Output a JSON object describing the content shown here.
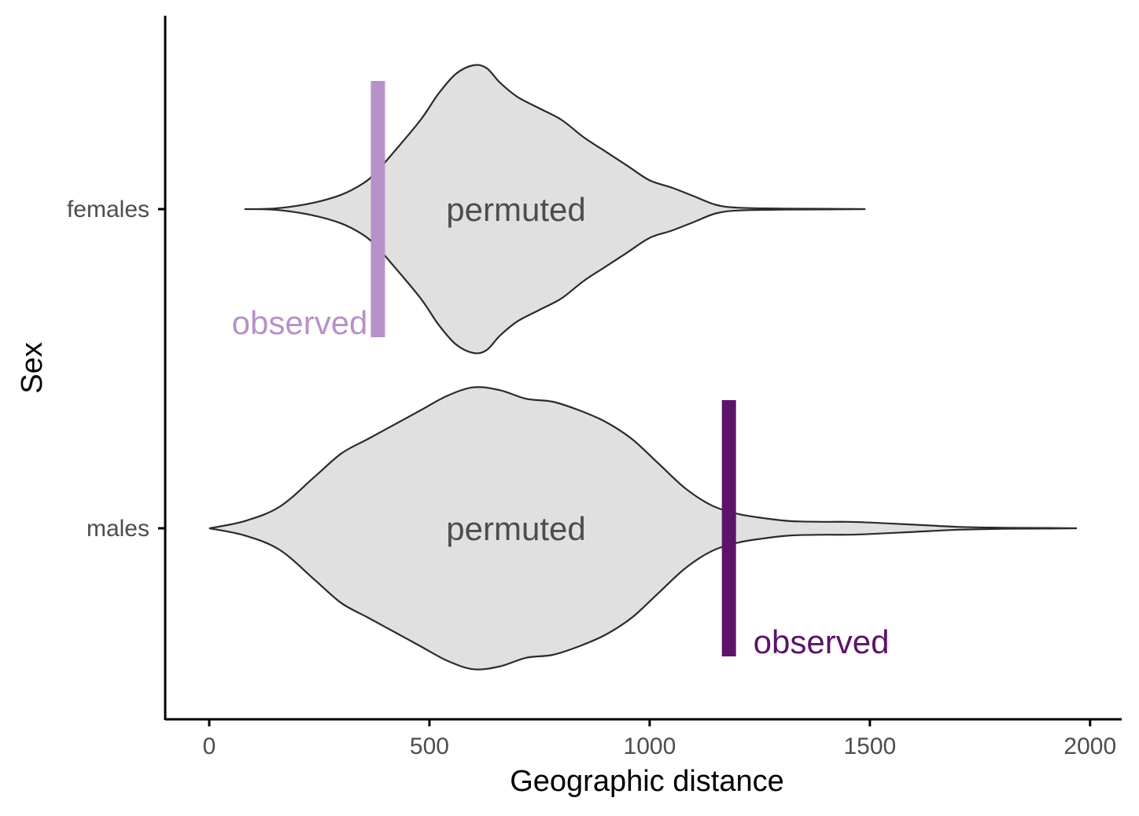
{
  "chart_data": {
    "type": "violin",
    "xlabel": "Geographic distance",
    "ylabel": "Sex",
    "xlim": [
      -100,
      2070
    ],
    "x_ticks": [
      0,
      500,
      1000,
      1500,
      2000
    ],
    "x_tick_labels": [
      "0",
      "500",
      "1000",
      "1500",
      "2000"
    ],
    "categories": [
      "females",
      "males"
    ],
    "grid": false,
    "legend": "none",
    "violin_fill": "#e0e0e0",
    "violin_stroke": "#2b2b2b",
    "violin_label": "permuted",
    "groups": [
      {
        "name": "females",
        "permuted_label": "permuted",
        "observed_label": "observed",
        "observed_value": 383,
        "observed_color": "#b791c8",
        "density": {
          "x": [
            80,
            150,
            230,
            300,
            350,
            380,
            420,
            480,
            520,
            560,
            600,
            630,
            660,
            700,
            750,
            800,
            850,
            900,
            950,
            1000,
            1050,
            1100,
            1150,
            1200,
            1300,
            1400,
            1490
          ],
          "width": [
            0.0,
            0.005,
            0.04,
            0.1,
            0.18,
            0.26,
            0.4,
            0.62,
            0.8,
            0.94,
            1.0,
            0.98,
            0.88,
            0.78,
            0.7,
            0.62,
            0.5,
            0.4,
            0.3,
            0.2,
            0.15,
            0.09,
            0.03,
            0.01,
            0.004,
            0.002,
            0.0
          ]
        }
      },
      {
        "name": "males",
        "permuted_label": "permuted",
        "observed_label": "observed",
        "observed_value": 1180,
        "observed_color": "#5c1468",
        "density": {
          "x": [
            0,
            80,
            160,
            240,
            300,
            360,
            420,
            480,
            540,
            600,
            660,
            720,
            780,
            840,
            900,
            960,
            1020,
            1080,
            1140,
            1200,
            1260,
            1320,
            1400,
            1450,
            1500,
            1600,
            1700,
            1800,
            1900,
            1970
          ],
          "width": [
            0.0,
            0.05,
            0.15,
            0.36,
            0.52,
            0.62,
            0.72,
            0.82,
            0.92,
            0.98,
            0.96,
            0.9,
            0.88,
            0.82,
            0.74,
            0.62,
            0.45,
            0.28,
            0.16,
            0.1,
            0.07,
            0.05,
            0.045,
            0.045,
            0.04,
            0.025,
            0.01,
            0.004,
            0.002,
            0.0
          ]
        }
      }
    ]
  }
}
